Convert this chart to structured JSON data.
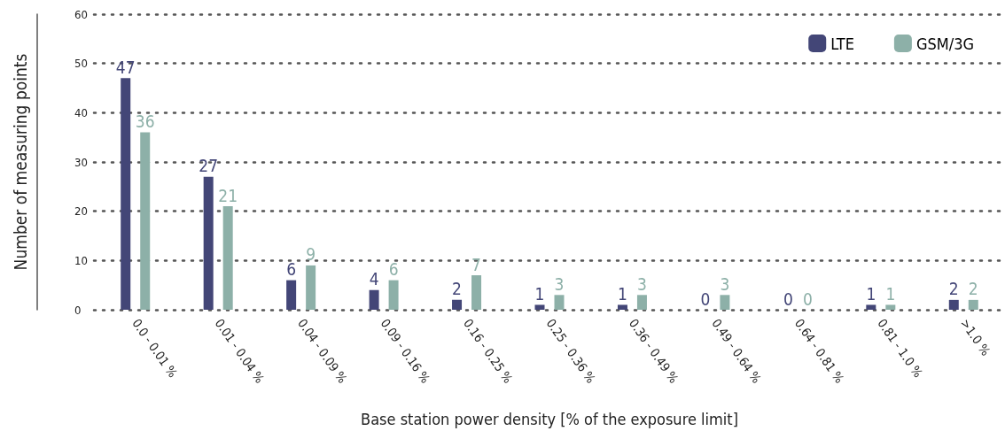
{
  "chart_data": {
    "type": "bar",
    "xlabel": "Base station power density [% of the exposure limit]",
    "ylabel": "Number of measuring points",
    "categories": [
      "0.0 - 0.01 %",
      "0.01 - 0.04 %",
      "0.04 - 0.09 %",
      "0.09 - 0.16 %",
      "0.16 - 0.25 %",
      "0.25 - 0.36 %",
      "0.36 - 0.49 %",
      "0.49 - 0.64 %",
      "0.64 - 0.81 %",
      "0.81 - 1.0 %",
      ">1.0 %"
    ],
    "series": [
      {
        "name": "LTE",
        "color": "#434677",
        "values": [
          47,
          27,
          6,
          4,
          2,
          1,
          1,
          0,
          0,
          1,
          2
        ]
      },
      {
        "name": "GSM/3G",
        "color": "#8db0a8",
        "values": [
          36,
          21,
          9,
          6,
          7,
          3,
          3,
          3,
          0,
          1,
          2
        ]
      }
    ],
    "ylim": [
      0,
      60
    ],
    "yticks": [
      0,
      10,
      20,
      30,
      40,
      50,
      60
    ],
    "grid": "y",
    "legend": "top right",
    "data_labels": true
  }
}
